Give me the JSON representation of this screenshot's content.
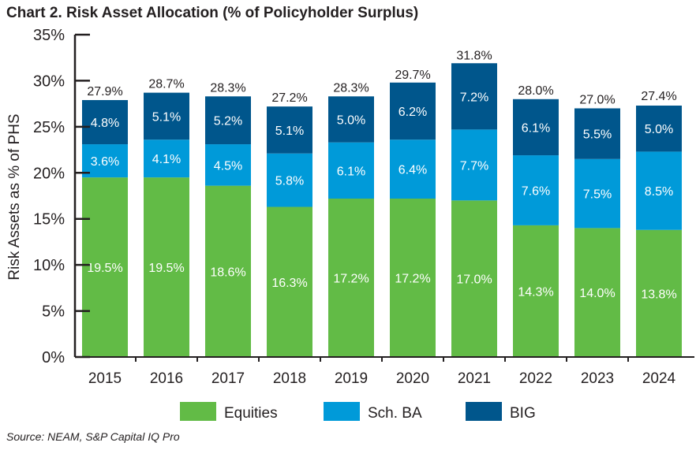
{
  "chart_data": {
    "type": "bar",
    "stacked": true,
    "title": "Chart 2. Risk Asset Allocation (% of Policyholder Surplus)",
    "ylabel": "Risk Assets as % of PHS",
    "xlabel": "",
    "ylim": [
      0,
      35
    ],
    "yticks": [
      "0%",
      "5%",
      "10%",
      "15%",
      "20%",
      "25%",
      "30%",
      "35%"
    ],
    "categories": [
      "2015",
      "2016",
      "2017",
      "2018",
      "2019",
      "2020",
      "2021",
      "2022",
      "2023",
      "2024"
    ],
    "series": [
      {
        "name": "Equities",
        "color": "#62bb46",
        "values": [
          19.5,
          19.5,
          18.6,
          16.3,
          17.2,
          17.2,
          17.0,
          14.3,
          14.0,
          13.8
        ]
      },
      {
        "name": "Sch. BA",
        "color": "#009ad9",
        "values": [
          3.6,
          4.1,
          4.5,
          5.8,
          6.1,
          6.4,
          7.7,
          7.6,
          7.5,
          8.5
        ]
      },
      {
        "name": "BIG",
        "color": "#00568c",
        "values": [
          4.8,
          5.1,
          5.2,
          5.1,
          5.0,
          6.2,
          7.2,
          6.1,
          5.5,
          5.0
        ]
      }
    ],
    "totals": [
      27.9,
      28.7,
      28.3,
      27.2,
      28.3,
      29.7,
      31.8,
      28.0,
      27.0,
      27.4
    ],
    "grid": false,
    "legend": "bottom",
    "source": "Source: NEAM, S&P Capital IQ Pro"
  }
}
